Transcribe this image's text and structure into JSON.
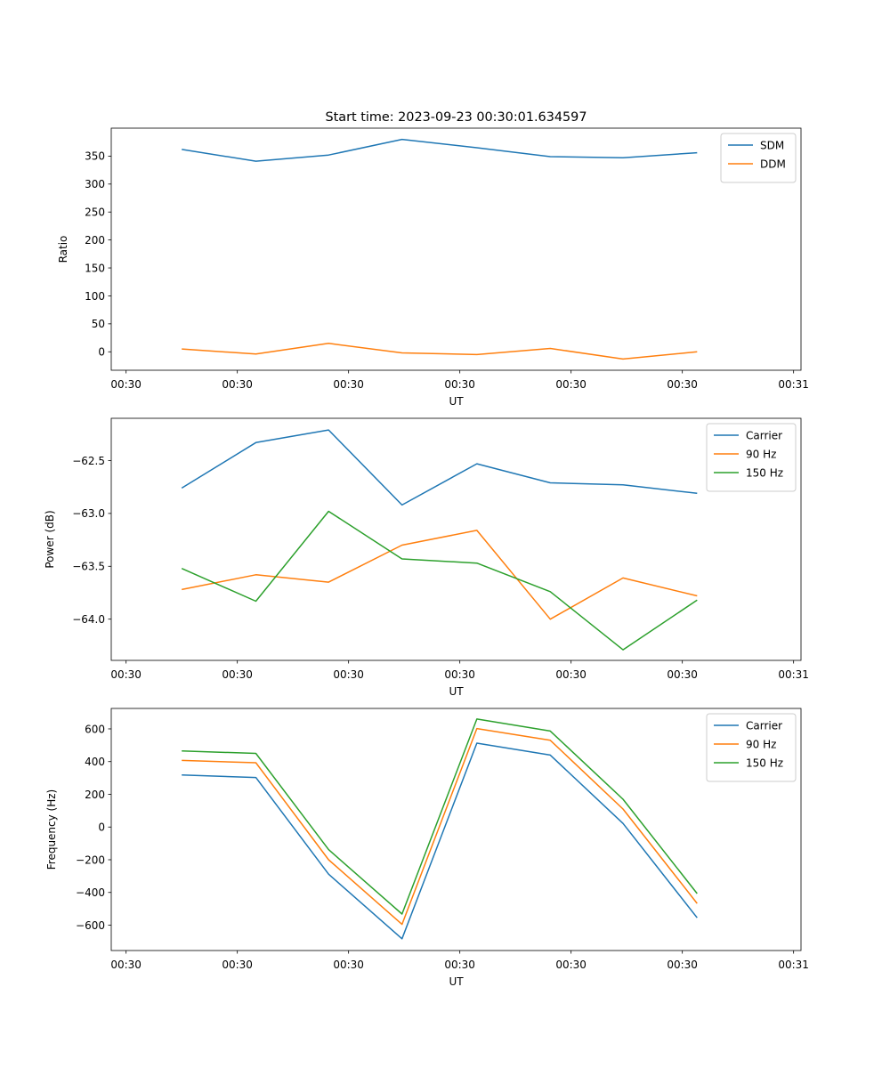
{
  "figure": {
    "title": "Start time: 2023-09-23 00:30:01.634597"
  },
  "colors": {
    "blue": "#1f77b4",
    "orange": "#ff7f0e",
    "green": "#2ca02c"
  },
  "chart_data": [
    {
      "type": "line",
      "xlabel": "UT",
      "ylabel": "Ratio",
      "xlim": [
        -0.2,
        9.1
      ],
      "ylim": [
        -33,
        400
      ],
      "x": [
        0.75,
        1.75,
        2.73,
        3.72,
        4.73,
        5.72,
        6.7,
        7.7
      ],
      "xticks": [
        0,
        1.5,
        3,
        4.5,
        6,
        7.5,
        9
      ],
      "xtick_labels": [
        "00:30",
        "00:30",
        "00:30",
        "00:30",
        "00:30",
        "00:30",
        "00:31"
      ],
      "yticks": [
        0,
        50,
        100,
        150,
        200,
        250,
        300,
        350
      ],
      "ytick_labels": [
        "0",
        "50",
        "100",
        "150",
        "200",
        "250",
        "300",
        "350"
      ],
      "legend": "upper right",
      "series": [
        {
          "name": "SDM",
          "color": "#1f77b4",
          "values": [
            362,
            341,
            352,
            380,
            365,
            349,
            347,
            356
          ]
        },
        {
          "name": "DDM",
          "color": "#ff7f0e",
          "values": [
            5,
            -4,
            15,
            -2,
            -5,
            6,
            -13,
            0
          ]
        }
      ]
    },
    {
      "type": "line",
      "xlabel": "UT",
      "ylabel": "Power (dB)",
      "xlim": [
        -0.2,
        9.1
      ],
      "ylim": [
        -64.39,
        -62.1
      ],
      "x": [
        0.75,
        1.75,
        2.73,
        3.72,
        4.73,
        5.72,
        6.7,
        7.7
      ],
      "xticks": [
        0,
        1.5,
        3,
        4.5,
        6,
        7.5,
        9
      ],
      "xtick_labels": [
        "00:30",
        "00:30",
        "00:30",
        "00:30",
        "00:30",
        "00:30",
        "00:31"
      ],
      "yticks": [
        -64.0,
        -63.5,
        -63.0,
        -62.5
      ],
      "ytick_labels": [
        "−64.0",
        "−63.5",
        "−63.0",
        "−62.5"
      ],
      "legend": "upper right",
      "series": [
        {
          "name": "Carrier",
          "color": "#1f77b4",
          "values": [
            -62.76,
            -62.33,
            -62.21,
            -62.92,
            -62.53,
            -62.71,
            -62.73,
            -62.81
          ]
        },
        {
          "name": "90 Hz",
          "color": "#ff7f0e",
          "values": [
            -63.72,
            -63.58,
            -63.65,
            -63.3,
            -63.16,
            -64.0,
            -63.61,
            -63.78
          ]
        },
        {
          "name": "150 Hz",
          "color": "#2ca02c",
          "values": [
            -63.52,
            -63.83,
            -62.98,
            -63.43,
            -63.47,
            -63.74,
            -64.29,
            -63.82
          ]
        }
      ]
    },
    {
      "type": "line",
      "xlabel": "UT",
      "ylabel": "Frequency (Hz)",
      "xlim": [
        -0.2,
        9.1
      ],
      "ylim": [
        -755,
        725
      ],
      "x": [
        0.75,
        1.75,
        2.73,
        3.72,
        4.73,
        5.72,
        6.7,
        7.7
      ],
      "xticks": [
        0,
        1.5,
        3,
        4.5,
        6,
        7.5,
        9
      ],
      "xtick_labels": [
        "00:30",
        "00:30",
        "00:30",
        "00:30",
        "00:30",
        "00:30",
        "00:31"
      ],
      "yticks": [
        -600,
        -400,
        -200,
        0,
        200,
        400,
        600
      ],
      "ytick_labels": [
        "−600",
        "−400",
        "−200",
        "0",
        "200",
        "400",
        "600"
      ],
      "legend": "upper right",
      "series": [
        {
          "name": "Carrier",
          "color": "#1f77b4",
          "values": [
            318,
            303,
            -288,
            -683,
            513,
            440,
            22,
            -555
          ]
        },
        {
          "name": "90 Hz",
          "color": "#ff7f0e",
          "values": [
            407,
            393,
            -200,
            -595,
            602,
            530,
            110,
            -467
          ]
        },
        {
          "name": "150 Hz",
          "color": "#2ca02c",
          "values": [
            465,
            450,
            -138,
            -532,
            660,
            587,
            170,
            -407
          ]
        }
      ]
    }
  ]
}
